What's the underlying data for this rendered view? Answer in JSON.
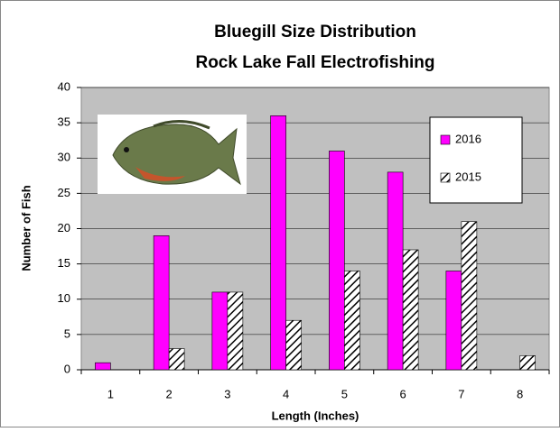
{
  "chart_data": {
    "type": "bar",
    "title": "Bluegill Size Distribution",
    "subtitle": "Rock Lake Fall Electrofishing",
    "x_label": "Length (Inches)",
    "y_label": "Number of Fish",
    "categories": [
      "1",
      "2",
      "3",
      "4",
      "5",
      "6",
      "7",
      "8"
    ],
    "series": [
      {
        "name": "2016",
        "color": "#ff00ff",
        "values": [
          1,
          19,
          11,
          36,
          31,
          28,
          14,
          0
        ]
      },
      {
        "name": "2015",
        "color": "#000000",
        "hatch": true,
        "values": [
          0,
          3,
          11,
          7,
          14,
          17,
          21,
          2
        ]
      }
    ],
    "ylim": [
      0,
      40
    ],
    "yticks": [
      0,
      5,
      10,
      15,
      20,
      25,
      30,
      35,
      40
    ],
    "grid": true,
    "legend": "upper right"
  }
}
